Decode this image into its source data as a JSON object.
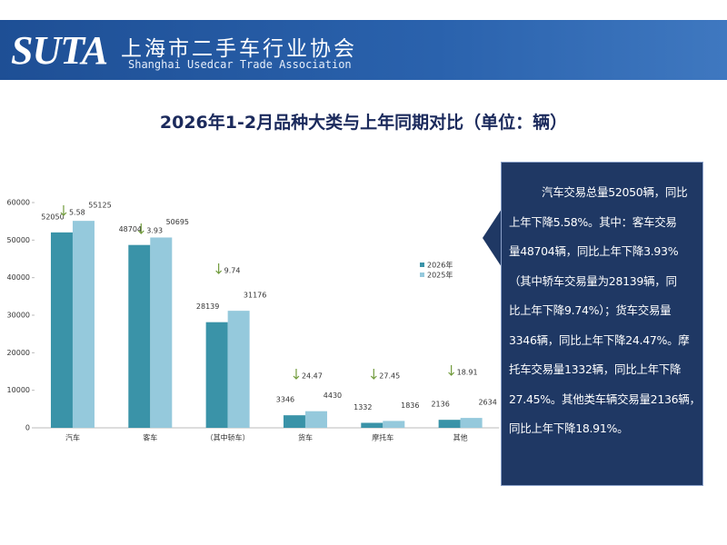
{
  "header": {
    "logo": "SUTA",
    "name": "上海市二手车行业协会",
    "english_name": "Shanghai Usedcar Trade Association"
  },
  "chart_data": {
    "type": "bar",
    "title": "2026年1-2月品种大类与上年同期对比（单位：辆）",
    "categories": [
      "汽车",
      "客车",
      "（其中轿车）",
      "货车",
      "摩托车",
      "其他"
    ],
    "series": [
      {
        "name": "2026年",
        "color": "#3a93a8",
        "values": [
          52050,
          48704,
          28139,
          3346,
          1332,
          2136
        ]
      },
      {
        "name": "2025年",
        "color": "#95c9dc",
        "values": [
          55125,
          50695,
          31176,
          4430,
          1836,
          2634
        ]
      }
    ],
    "decline_percent": [
      5.58,
      3.93,
      9.74,
      24.47,
      27.45,
      18.91
    ],
    "ylim": [
      0,
      60000
    ],
    "yticks": [
      0,
      10000,
      20000,
      30000,
      40000,
      50000,
      60000
    ],
    "grid": false
  },
  "text_box": {
    "lines": [
      "汽车交易总量52050辆，同比",
      "上年下降5.58%。其中：客车交易",
      "量48704辆，同比上年下降3.93%",
      "（其中轿车交易量为28139辆，同",
      "比上年下降9.74%）；货车交易量",
      "3346辆，同比上年下降24.47%。摩",
      "托车交易量1332辆，同比上年下降",
      "27.45%。其他类车辆交易量2136辆，",
      "同比上年下降18.91%。"
    ]
  }
}
